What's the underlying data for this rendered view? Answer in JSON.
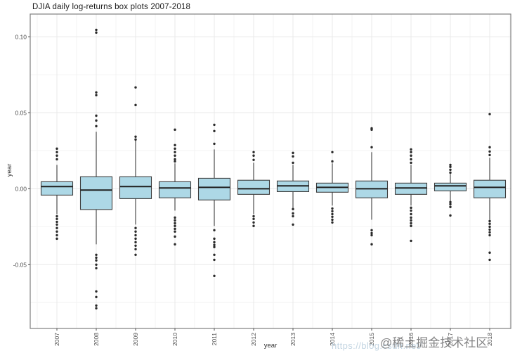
{
  "watermarks": {
    "csdn_url": "https://blog.csdn.net/",
    "juejin": "@稀土掘金技术社区"
  },
  "chart_data": {
    "type": "boxplot",
    "title": "DJIA daily log-returns box plots 2007-2018",
    "xlabel": "year",
    "ylabel": "year",
    "categories": [
      "2007",
      "2008",
      "2009",
      "2010",
      "2011",
      "2012",
      "2013",
      "2014",
      "2015",
      "2016",
      "2017",
      "2018"
    ],
    "ylim": [
      -0.092,
      0.115
    ],
    "yticks": [
      {
        "value": 0.1,
        "label": "0.10"
      },
      {
        "value": 0.05,
        "label": "0.05"
      },
      {
        "value": 0.0,
        "label": "0.00"
      },
      {
        "value": -0.05,
        "label": "-0.05"
      }
    ],
    "yticks_minor": [
      0.075,
      0.025,
      -0.025,
      -0.075
    ],
    "grid": "major+minor",
    "legend": "none",
    "colors": {
      "box_fill": "#add8e6",
      "box_stroke": "#3d3d3d",
      "median": "#1f1f1f",
      "whisker": "#3d3d3d",
      "outlier": "#2a2a2a",
      "grid_major": "#e8e8e8",
      "grid_minor": "#f3f3f3",
      "panel_border": "#7f7f7f",
      "tick": "#4a4a4a",
      "tick_label": "#4d4d4d",
      "title": "#1a1a1a"
    },
    "series": [
      {
        "year": "2007",
        "whisker_low": -0.0167,
        "q1": -0.0042,
        "median": 0.0014,
        "q3": 0.0046,
        "whisker_high": 0.0157,
        "outliers_high": [
          0.0194,
          0.0218,
          0.0241,
          0.0264
        ],
        "outliers_low": [
          -0.0181,
          -0.0199,
          -0.0218,
          -0.0236,
          -0.0259,
          -0.0282,
          -0.0306,
          -0.0329
        ]
      },
      {
        "year": "2008",
        "whisker_low": -0.0366,
        "q1": -0.0137,
        "median": -0.0009,
        "q3": 0.0079,
        "whisker_high": 0.0375,
        "outliers_high": [
          0.0412,
          0.0449,
          0.0481,
          0.0616,
          0.0634,
          0.1028,
          0.1046
        ],
        "outliers_low": [
          -0.0435,
          -0.0454,
          -0.0472,
          -0.05,
          -0.0523,
          -0.0676,
          -0.0713,
          -0.0769,
          -0.0787
        ]
      },
      {
        "year": "2009",
        "whisker_low": -0.0236,
        "q1": -0.0065,
        "median": 0.0014,
        "q3": 0.0079,
        "whisker_high": 0.0319,
        "outliers_high": [
          0.0324,
          0.0343,
          0.0551,
          0.0667
        ],
        "outliers_low": [
          -0.0259,
          -0.0282,
          -0.0306,
          -0.0329,
          -0.0352,
          -0.0375,
          -0.0398,
          -0.0435
        ]
      },
      {
        "year": "2010",
        "whisker_low": -0.0144,
        "q1": -0.006,
        "median": 0.0005,
        "q3": 0.0046,
        "whisker_high": 0.0167,
        "outliers_high": [
          0.018,
          0.0194,
          0.0218,
          0.0241,
          0.0264,
          0.0287,
          0.0389
        ],
        "outliers_low": [
          -0.019,
          -0.0208,
          -0.0227,
          -0.0245,
          -0.0264,
          -0.0282,
          -0.0315,
          -0.0366
        ]
      },
      {
        "year": "2011",
        "whisker_low": -0.0245,
        "q1": -0.0074,
        "median": 0.0009,
        "q3": 0.0069,
        "whisker_high": 0.0259,
        "outliers_high": [
          0.0296,
          0.038,
          0.0421
        ],
        "outliers_low": [
          -0.0273,
          -0.0329,
          -0.0352,
          -0.037,
          -0.0384,
          -0.0435,
          -0.0468,
          -0.0574
        ]
      },
      {
        "year": "2012",
        "whisker_low": -0.0167,
        "q1": -0.0037,
        "median": 0.0,
        "q3": 0.0056,
        "whisker_high": 0.0171,
        "outliers_high": [
          0.019,
          0.0218,
          0.0241
        ],
        "outliers_low": [
          -0.0181,
          -0.0199,
          -0.0222,
          -0.0245
        ]
      },
      {
        "year": "2013",
        "whisker_low": -0.013,
        "q1": -0.0019,
        "median": 0.0019,
        "q3": 0.0051,
        "whisker_high": 0.0157,
        "outliers_high": [
          0.0171,
          0.0213,
          0.0236
        ],
        "outliers_low": [
          -0.0134,
          -0.0162,
          -0.0181,
          -0.0236
        ]
      },
      {
        "year": "2014",
        "whisker_low": -0.0111,
        "q1": -0.0023,
        "median": 0.0009,
        "q3": 0.0037,
        "whisker_high": 0.0167,
        "outliers_high": [
          0.018,
          0.0241
        ],
        "outliers_low": [
          -0.013,
          -0.0148,
          -0.0167,
          -0.0185,
          -0.0204,
          -0.0222
        ]
      },
      {
        "year": "2015",
        "whisker_low": -0.0204,
        "q1": -0.006,
        "median": 0.0,
        "q3": 0.0051,
        "whisker_high": 0.0241,
        "outliers_high": [
          0.0273,
          0.0389,
          0.0398
        ],
        "outliers_low": [
          -0.0273,
          -0.0292,
          -0.0306,
          -0.0366
        ]
      },
      {
        "year": "2016",
        "whisker_low": -0.0111,
        "q1": -0.0037,
        "median": 0.0005,
        "q3": 0.0037,
        "whisker_high": 0.0157,
        "outliers_high": [
          0.0171,
          0.0194,
          0.0218,
          0.0241,
          0.0259
        ],
        "outliers_low": [
          -0.0125,
          -0.0144,
          -0.0167,
          -0.019,
          -0.0208,
          -0.0227,
          -0.0245,
          -0.0343
        ]
      },
      {
        "year": "2017",
        "whisker_low": -0.0083,
        "q1": -0.0014,
        "median": 0.0019,
        "q3": 0.0037,
        "whisker_high": 0.0097,
        "outliers_high": [
          0.0106,
          0.0125,
          0.0144,
          0.0157
        ],
        "outliers_low": [
          -0.0088,
          -0.0102,
          -0.012,
          -0.0176
        ]
      },
      {
        "year": "2018",
        "whisker_low": -0.0204,
        "q1": -0.006,
        "median": 0.0009,
        "q3": 0.0056,
        "whisker_high": 0.0204,
        "outliers_high": [
          0.0222,
          0.0245,
          0.0273,
          0.0491
        ],
        "outliers_low": [
          -0.0213,
          -0.0231,
          -0.025,
          -0.0269,
          -0.0287,
          -0.0306,
          -0.0421,
          -0.0468
        ]
      }
    ]
  }
}
